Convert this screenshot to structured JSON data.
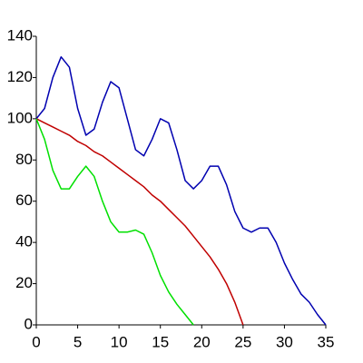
{
  "chart_data": {
    "type": "line",
    "x": [
      0,
      1,
      2,
      3,
      4,
      5,
      6,
      7,
      8,
      9,
      10,
      11,
      12,
      13,
      14,
      15,
      16,
      17,
      18,
      19,
      20,
      21,
      22,
      23,
      24,
      25,
      26,
      27,
      28,
      29,
      30,
      31,
      32,
      33,
      34,
      35
    ],
    "series": [
      {
        "color": "#0000b0",
        "values": [
          100,
          105,
          120,
          130,
          125,
          105,
          92,
          95,
          108,
          118,
          115,
          100,
          85,
          82,
          90,
          100,
          98,
          85,
          70,
          66,
          70,
          77,
          77,
          68,
          55,
          47,
          45,
          47,
          47,
          40,
          30,
          22,
          15,
          11,
          5,
          0
        ]
      },
      {
        "color": "#c00000",
        "values": [
          100,
          98,
          96,
          94,
          92,
          89,
          87,
          84,
          82,
          79,
          76,
          73,
          70,
          67,
          63,
          60,
          56,
          52,
          48,
          43,
          38,
          33,
          27,
          20,
          11,
          0,
          null,
          null,
          null,
          null,
          null,
          null,
          null,
          null,
          null,
          null
        ]
      },
      {
        "color": "#00e000",
        "values": [
          100,
          90,
          75,
          66,
          66,
          72,
          77,
          72,
          60,
          50,
          45,
          45,
          46,
          44,
          35,
          24,
          16,
          10,
          5,
          0,
          null,
          null,
          null,
          null,
          null,
          null,
          null,
          null,
          null,
          null,
          null,
          null,
          null,
          null,
          null,
          null
        ]
      }
    ],
    "xlim": [
      0,
      35
    ],
    "xticks": [
      0,
      5,
      10,
      15,
      20,
      25,
      30,
      35
    ],
    "ylim": [
      0,
      140
    ],
    "yticks": [
      0,
      20,
      40,
      60,
      80,
      100,
      120,
      140
    ]
  }
}
